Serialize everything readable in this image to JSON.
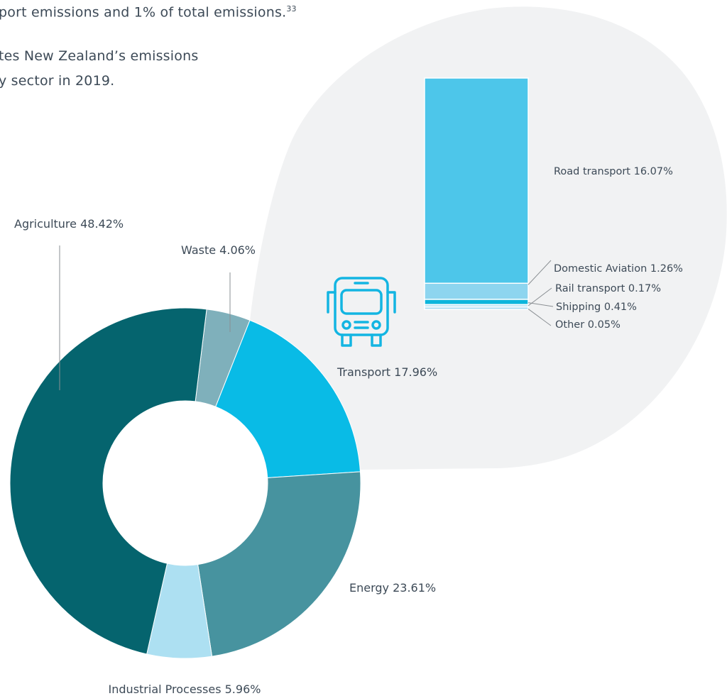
{
  "intro": {
    "line1": "port emissions and 1% of total emissions.",
    "line1_ref": "33",
    "line2": "tes New Zealand’s emissions",
    "line3": "y sector in 2019."
  },
  "chart_data": [
    {
      "type": "pie",
      "style": "donut",
      "categories": [
        "Waste",
        "Transport",
        "Energy",
        "Industrial Processes",
        "Agriculture"
      ],
      "values": [
        4.06,
        17.96,
        23.61,
        5.96,
        48.42
      ],
      "labels": [
        "Waste 4.06%",
        "Transport 17.96%",
        "Energy 23.61%",
        "Industrial Processes 5.96%",
        "Agriculture 48.42%"
      ],
      "colors": [
        "#7fb0bb",
        "#09bbe6",
        "#47939f",
        "#ade0f2",
        "#05646e"
      ],
      "unit": "%"
    },
    {
      "type": "bar",
      "style": "stacked-column",
      "categories": [
        "Road transport",
        "Domestic Aviation",
        "Shipping",
        "Rail transport",
        "Other"
      ],
      "values": [
        16.07,
        1.26,
        0.41,
        0.17,
        0.05
      ],
      "labels": [
        "Road transport 16.07%",
        "Domestic Aviation 1.26%",
        "Shipping 0.41%",
        "Rail transport 0.17%",
        "Other 0.05%"
      ],
      "colors": [
        "#4dc6ea",
        "#8dd5ef",
        "#0cb6dc",
        "#c0e6f6",
        "#a9dcf2"
      ],
      "unit": "%"
    }
  ],
  "icon": {
    "transport": "bus-icon"
  },
  "colors": {
    "callout_bg": "#f1f2f3",
    "text": "#3d4a57",
    "leader": "#8a8f93"
  }
}
